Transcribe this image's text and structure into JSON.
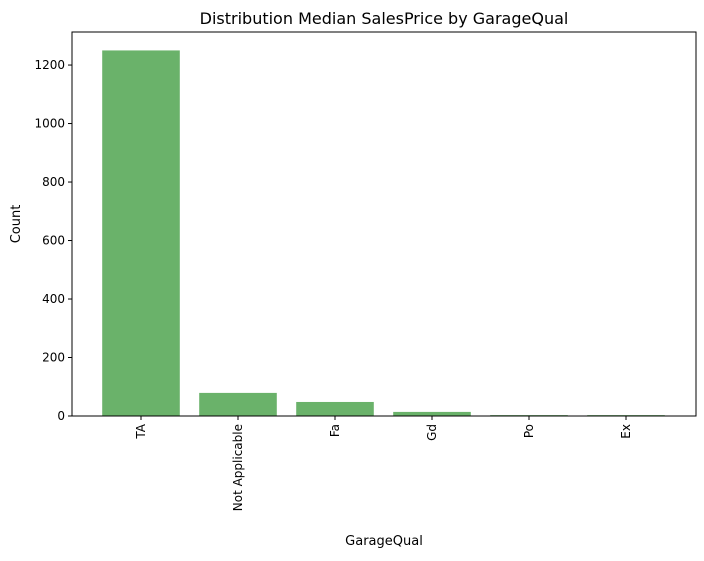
{
  "chart_data": {
    "type": "bar",
    "title": "Distribution Median SalesPrice by GarageQual",
    "xlabel": "GarageQual",
    "ylabel": "Count",
    "categories": [
      "TA",
      "Not Applicable",
      "Fa",
      "Gd",
      "Po",
      "Ex"
    ],
    "values": [
      1250,
      79,
      48,
      14,
      3,
      3
    ],
    "ylim": [
      0,
      1313
    ],
    "yticks": [
      0,
      200,
      400,
      600,
      800,
      1000,
      1200
    ],
    "grid": false,
    "bar_color": "#6ab26a"
  }
}
